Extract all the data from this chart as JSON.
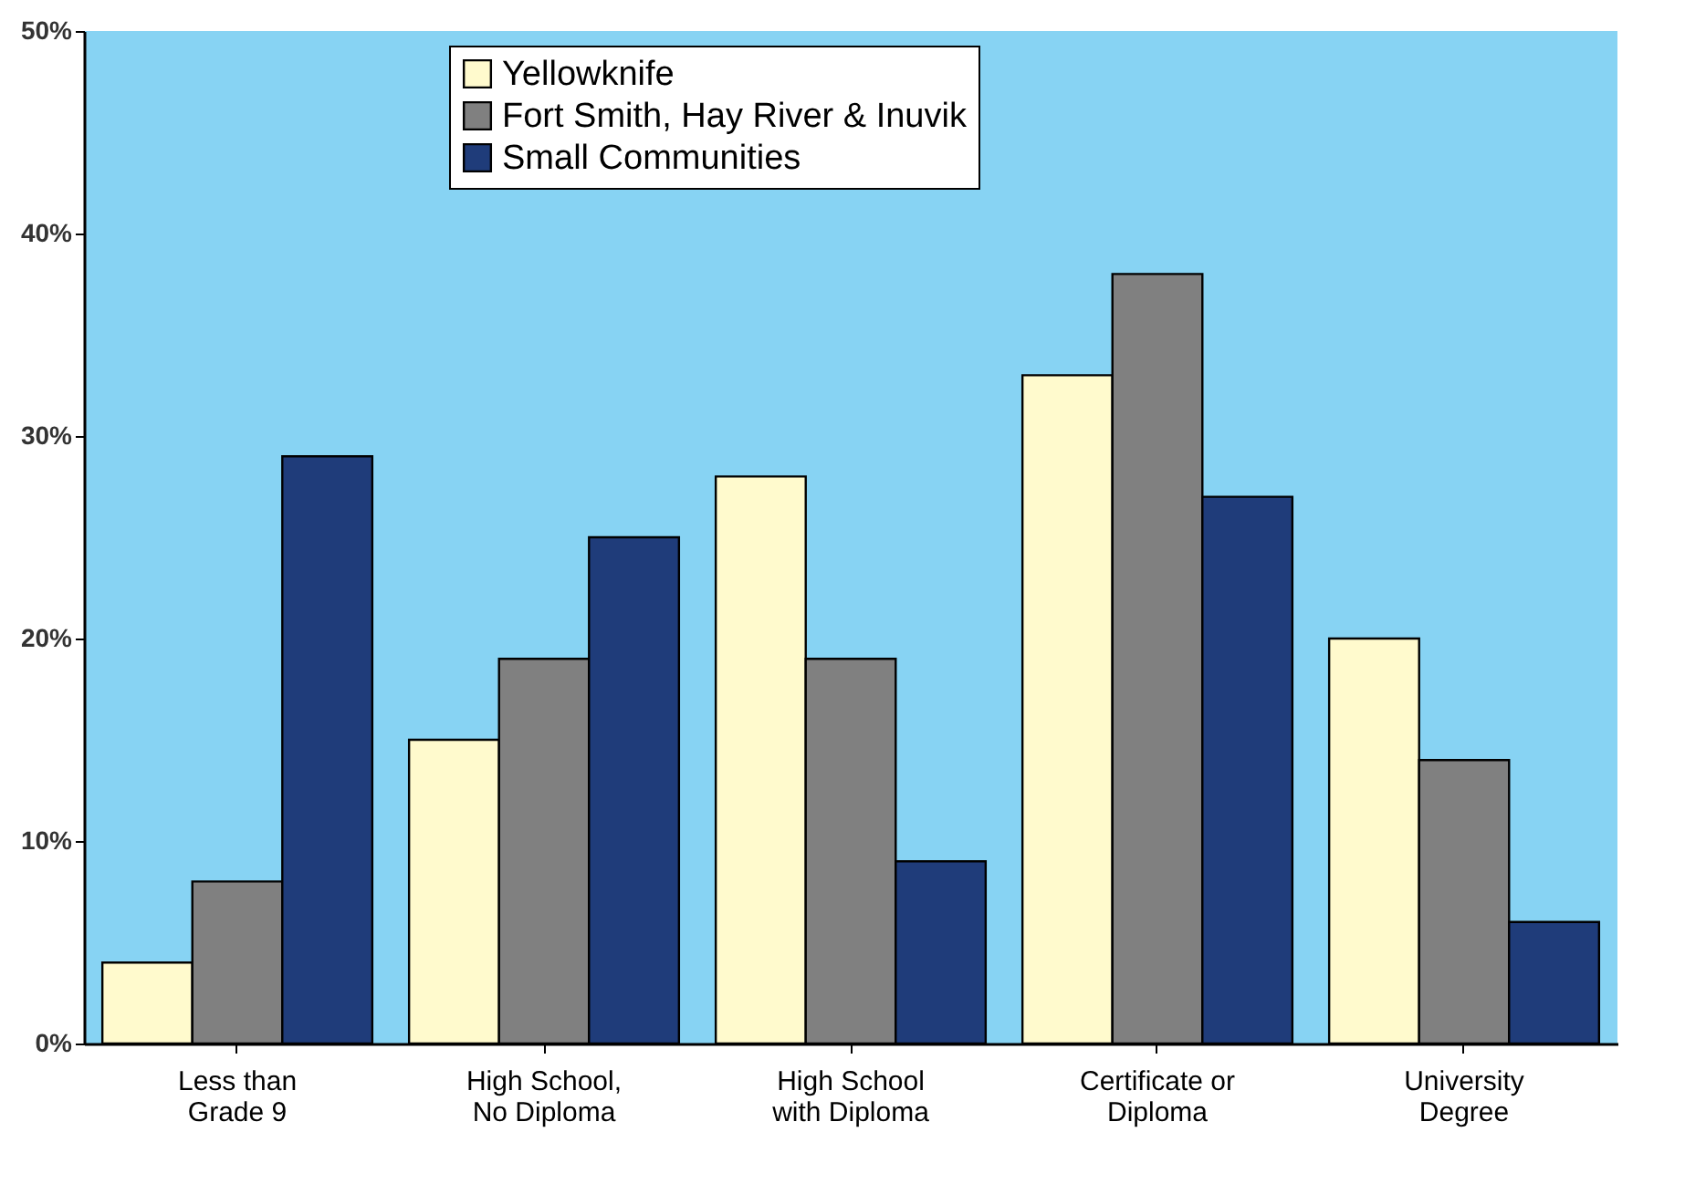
{
  "chart_data": {
    "type": "bar",
    "categories": [
      "Less than Grade 9",
      "High School, No Diploma",
      "High School with Diploma",
      "Certificate or Diploma",
      "University Degree"
    ],
    "series": [
      {
        "name": "Yellowknife",
        "color": "#fffacd",
        "values": [
          4,
          15,
          28,
          33,
          20
        ]
      },
      {
        "name": "Fort Smith, Hay River & Inuvik",
        "color": "#808080",
        "values": [
          8,
          19,
          19,
          38,
          14
        ]
      },
      {
        "name": "Small Communities",
        "color": "#1f3c7a",
        "values": [
          29,
          25,
          9,
          27,
          6
        ]
      }
    ],
    "ylim": [
      0,
      50
    ],
    "yticks": [
      {
        "value": 0,
        "label": "0%"
      },
      {
        "value": 10,
        "label": "10%"
      },
      {
        "value": 20,
        "label": "20%"
      },
      {
        "value": 30,
        "label": "30%"
      },
      {
        "value": 40,
        "label": "40%"
      },
      {
        "value": 50,
        "label": "50%"
      }
    ],
    "grid": false,
    "legend": "top"
  }
}
